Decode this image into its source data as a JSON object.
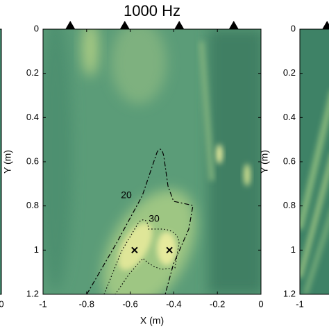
{
  "chart_data": [
    {
      "type": "heatmap",
      "xlim": [
        -1,
        0
      ],
      "ylim": [
        1.2,
        0
      ],
      "xticks": [
        0
      ]
    },
    {
      "type": "heatmap",
      "title": "1000 Hz",
      "x_label": "X (m)",
      "y_label": "Y (m)",
      "xlim": [
        -1,
        0
      ],
      "ylim": [
        1.2,
        0
      ],
      "xticks": [
        -1,
        -0.8,
        -0.6,
        -0.4,
        -0.2,
        0
      ],
      "yticks": [
        0,
        0.2,
        0.4,
        0.6,
        0.8,
        1,
        1.2
      ],
      "sensors_x": [
        -0.875,
        -0.625,
        -0.375,
        -0.125
      ],
      "sources": {
        "x": [
          -0.58,
          -0.42
        ],
        "y": [
          1,
          1
        ]
      },
      "contours": [
        {
          "level": 20
        },
        {
          "level": 30
        }
      ]
    },
    {
      "type": "heatmap",
      "y_label": "Y (m)",
      "xlim": [
        -1,
        0
      ],
      "ylim": [
        1.2,
        0
      ],
      "xticks": [
        -1
      ],
      "yticks": [
        0,
        0.2,
        0.4,
        0.6,
        0.8,
        1,
        1.2
      ],
      "sensors_x": [
        -0.875
      ]
    }
  ]
}
